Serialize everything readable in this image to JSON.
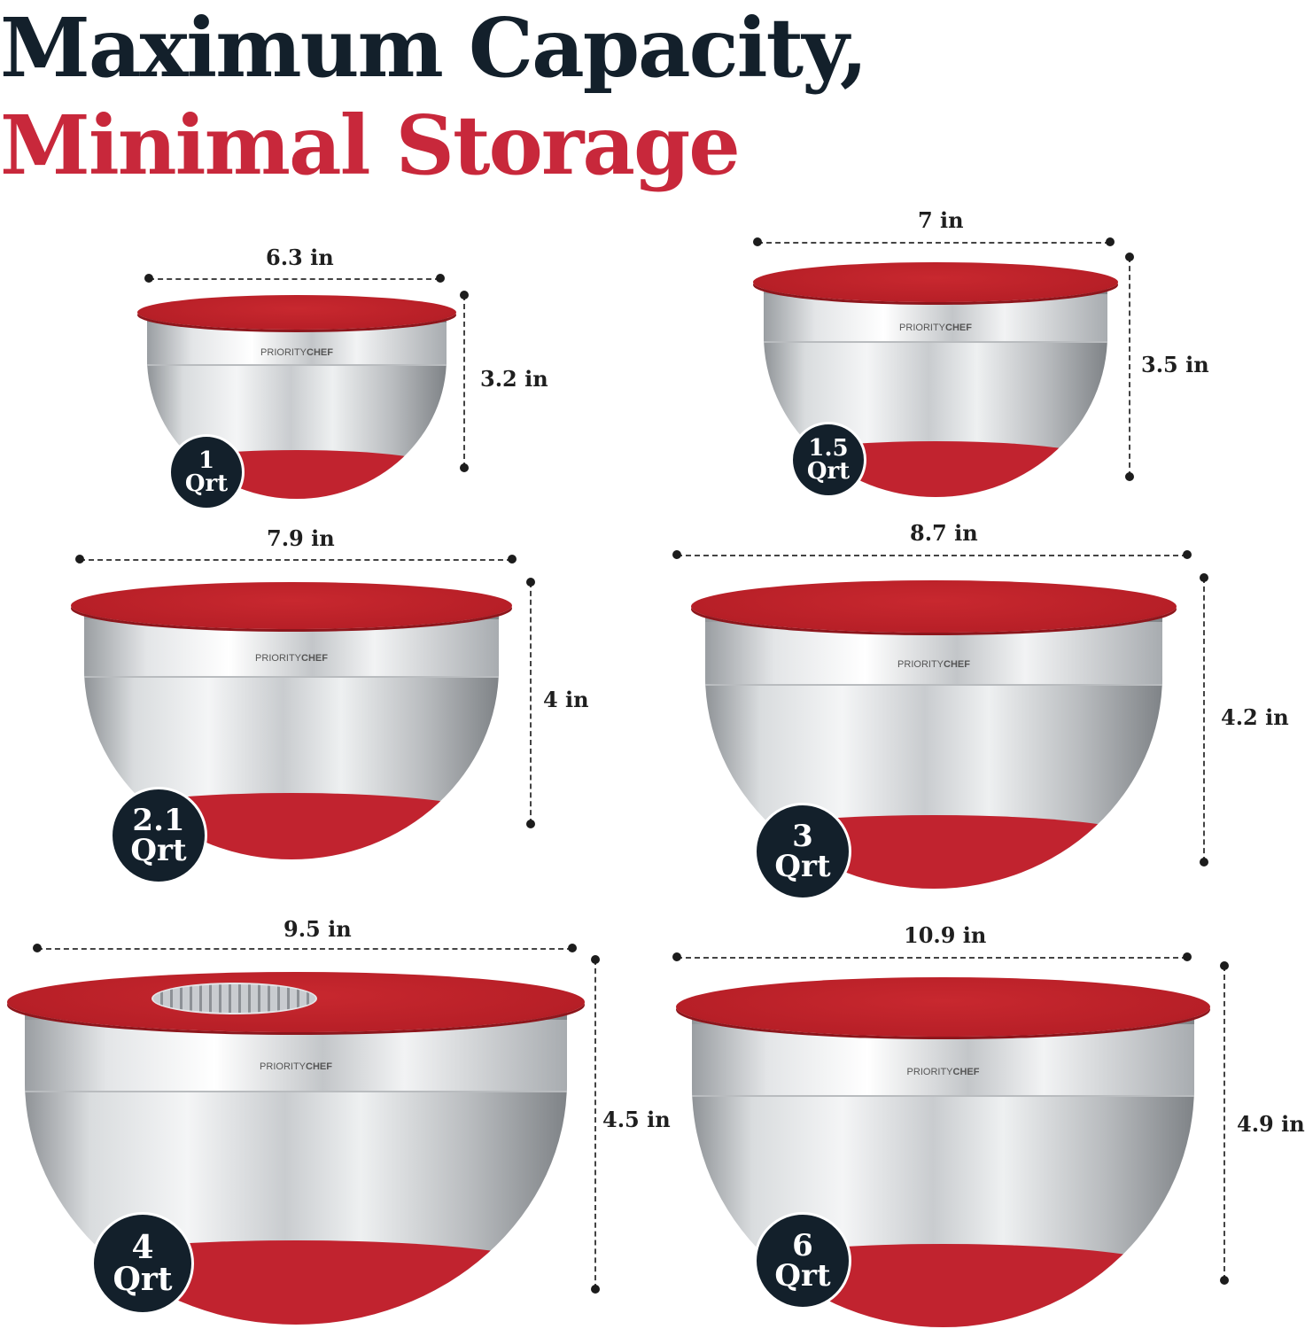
{
  "headline": {
    "line1": "Maximum Capacity,",
    "line2": "Minimal Storage",
    "line1_color": "#13202b",
    "line2_color": "#c8283b"
  },
  "brand": {
    "prefix": "PRIORITY",
    "suffix": "CHEF"
  },
  "bowls": [
    {
      "capacity": "1",
      "unit": "Qrt",
      "width": "6.3 in",
      "height": "3.2 in"
    },
    {
      "capacity": "1.5",
      "unit": "Qrt",
      "width": "7 in",
      "height": "3.5 in"
    },
    {
      "capacity": "2.1",
      "unit": "Qrt",
      "width": "7.9 in",
      "height": "4 in"
    },
    {
      "capacity": "3",
      "unit": "Qrt",
      "width": "8.7 in",
      "height": "4.2 in"
    },
    {
      "capacity": "4",
      "unit": "Qrt",
      "width": "9.5 in",
      "height": "4.5 in",
      "lid_insert": "grater"
    },
    {
      "capacity": "6",
      "unit": "Qrt",
      "width": "10.9 in",
      "height": "4.9 in"
    }
  ],
  "colors": {
    "lid": "#b71f27",
    "badge": "#13202b",
    "steel": "#d9dcde"
  }
}
